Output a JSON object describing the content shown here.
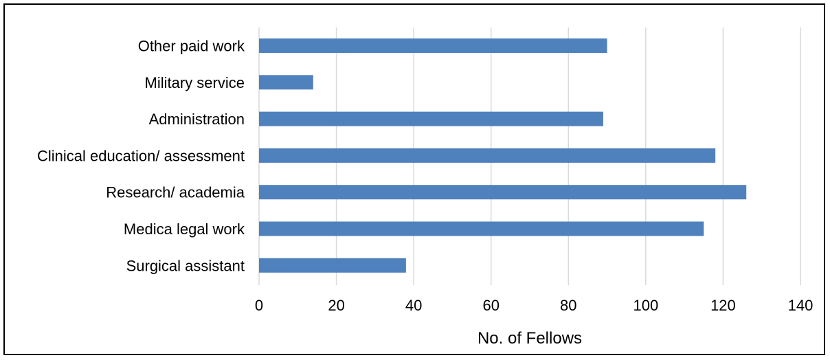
{
  "chart_data": {
    "type": "bar",
    "orientation": "horizontal",
    "categories": [
      "Other paid work",
      "Military service",
      "Administration",
      "Clinical education/ assessment",
      "Research/ academia",
      "Medica legal work",
      "Surgical assistant"
    ],
    "values": [
      90,
      14,
      89,
      118,
      126,
      115,
      38
    ],
    "xlabel": "No. of Fellows",
    "ylabel": "",
    "xlim": [
      0,
      140
    ],
    "xticks": [
      "0",
      "20",
      "40",
      "60",
      "80",
      "100",
      "120",
      "140"
    ],
    "grid": "vertical",
    "bar_color": "#4f81bd",
    "grid_color": "#d9d9d9"
  }
}
